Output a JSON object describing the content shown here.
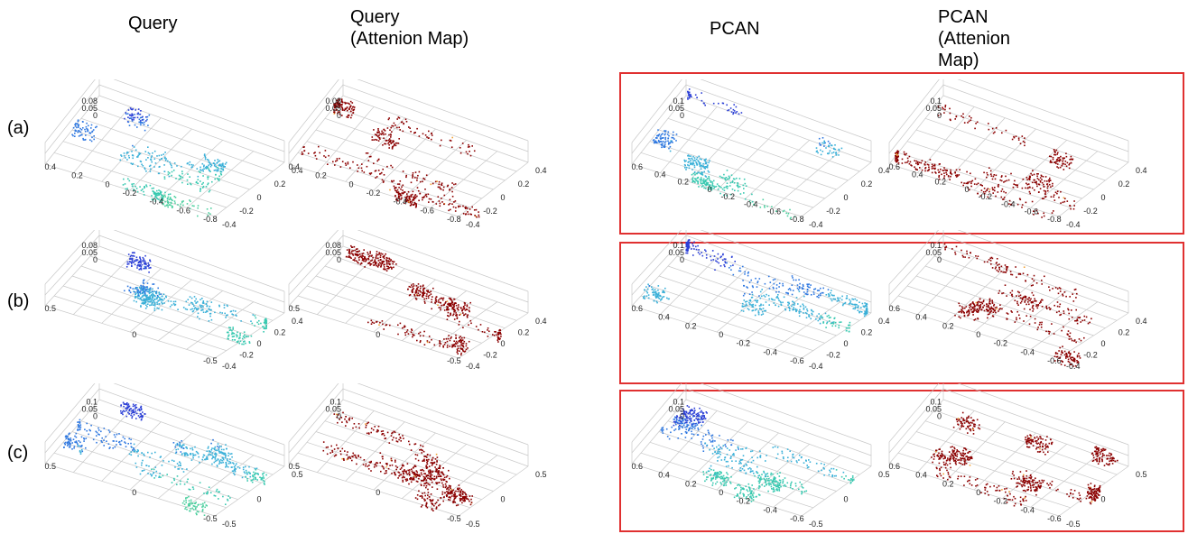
{
  "columns": {
    "query": "Query",
    "query_attention": "Query\n(Attenion Map)",
    "pcan": "PCAN",
    "pcan_attention": "PCAN\n(Attenion\nMap)"
  },
  "rows": [
    {
      "label": "(a)",
      "query_z": [
        "0.08",
        "0.05",
        "0"
      ],
      "pcan_z": [
        "0.1",
        "0.05",
        "0"
      ],
      "query_y": [
        "0.4",
        "0.2",
        "0",
        "-0.2",
        "-0.4",
        "-0.6",
        "-0.8"
      ],
      "pcan_y": [
        "0.6",
        "0.4",
        "0.2",
        "0",
        "-0.2",
        "-0.4",
        "-0.6",
        "-0.8"
      ],
      "x": [
        "-0.4",
        "-0.2",
        "0",
        "0.2",
        "0.4"
      ]
    },
    {
      "label": "(b)",
      "query_z": [
        "0.08",
        "0.05",
        "0"
      ],
      "pcan_z": [
        "0.1",
        "0.05",
        "0"
      ],
      "query_y": [
        "0.5",
        "0",
        "-0.5"
      ],
      "pcan_y": [
        "0.6",
        "0.4",
        "0.2",
        "0",
        "-0.2",
        "-0.4",
        "-0.6"
      ],
      "x": [
        "-0.4",
        "-0.2",
        "0",
        "0.2",
        "0.4"
      ]
    },
    {
      "label": "(c)",
      "query_z": [
        "0.1",
        "0.05",
        "0"
      ],
      "pcan_z": [
        "0.1",
        "0.05",
        "0"
      ],
      "query_y": [
        "0.5",
        "0",
        "-0.5"
      ],
      "pcan_y": [
        "0.6",
        "0.4",
        "0.2",
        "0",
        "-0.2",
        "-0.4",
        "-0.6"
      ],
      "x": [
        "-0.5",
        "0",
        "0.5"
      ]
    }
  ],
  "colors": {
    "box": "#e03030",
    "query_colormap": [
      "#2b3fd6",
      "#2f78e0",
      "#3ab0d8",
      "#38c9b0",
      "#4fd0a0"
    ],
    "attention": "#8b0000",
    "attention_hot": "#f2a33a"
  }
}
